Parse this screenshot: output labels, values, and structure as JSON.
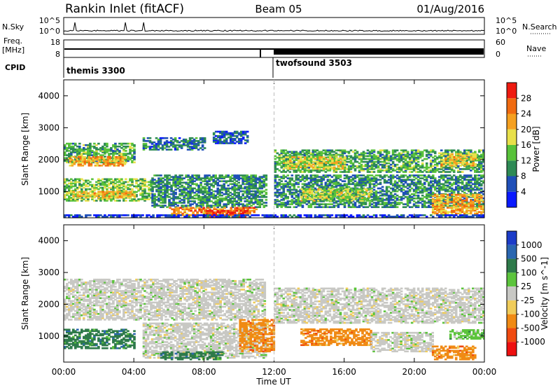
{
  "header": {
    "station": "Rankin Inlet (fitACF)",
    "beam": "Beam 05",
    "date": "01/Aug/2016"
  },
  "noise_panel": {
    "left_label": "N.Sky",
    "right_label": "N.Search",
    "left_ticks": [
      "10^5",
      "10^0"
    ],
    "right_ticks": [
      "10^5",
      "10^0"
    ]
  },
  "freq_panel": {
    "left_label_line1": "Freq.",
    "left_label_line2": "[MHz]",
    "right_label": "Nave",
    "left_ticks": [
      "18",
      "8"
    ],
    "right_ticks": [
      "60",
      "0"
    ]
  },
  "cpid_panel": {
    "label": "CPID",
    "modes": [
      {
        "name": "themis 3300",
        "start_hour": 0
      },
      {
        "name": "twofsound 3503",
        "start_hour": 12
      }
    ]
  },
  "colors": {
    "power": [
      "#0a1aff",
      "#1f4fb8",
      "#2e8a55",
      "#58c23a",
      "#e8e04a",
      "#f5a020",
      "#f06a10",
      "#ee1a10"
    ],
    "velocity": [
      "#1c3cc8",
      "#2a66b0",
      "#2e7a4a",
      "#5cc43c",
      "#c8c8c4",
      "#f0cc5a",
      "#f08a14",
      "#f04a10",
      "#ee1010"
    ],
    "dashed_line": "#bbbbbb"
  },
  "chart_data": [
    {
      "type": "heatmap",
      "title": "",
      "xlabel": "Time UT",
      "ylabel": "Slant Range [km]",
      "xlim": [
        0,
        24
      ],
      "ylim": [
        180,
        4500
      ],
      "x_ticks": [
        "00:00",
        "04:00",
        "08:00",
        "12:00",
        "16:00",
        "20:00",
        "00:00"
      ],
      "y_ticks": [
        "1000",
        "2000",
        "3000",
        "4000"
      ],
      "y_tick_values": [
        1000,
        2000,
        3000,
        4000
      ],
      "colorbar_label": "Power [dB]",
      "colorbar_ticks": [
        "4",
        "8",
        "12",
        "16",
        "20",
        "24",
        "28"
      ],
      "colorbar_range": [
        0,
        32
      ],
      "regions": [
        {
          "t0": 0.0,
          "t1": 4.0,
          "r0": 1900,
          "r1": 2500,
          "v": 12
        },
        {
          "t0": 0.3,
          "t1": 3.5,
          "r0": 1800,
          "r1": 2100,
          "v": 22
        },
        {
          "t0": 0.0,
          "t1": 5.0,
          "r0": 700,
          "r1": 1400,
          "v": 14
        },
        {
          "t0": 0.5,
          "t1": 4.0,
          "r0": 800,
          "r1": 1000,
          "v": 20
        },
        {
          "t0": 5.0,
          "t1": 11.5,
          "r0": 500,
          "r1": 1500,
          "v": 10
        },
        {
          "t0": 6.0,
          "t1": 11.0,
          "r0": 250,
          "r1": 500,
          "v": 24
        },
        {
          "t0": 8.0,
          "t1": 10.5,
          "r0": 200,
          "r1": 400,
          "v": 30
        },
        {
          "t0": 8.5,
          "t1": 10.5,
          "r0": 2500,
          "r1": 2900,
          "v": 6
        },
        {
          "t0": 4.5,
          "t1": 8.0,
          "r0": 2300,
          "r1": 2700,
          "v": 8
        },
        {
          "t0": 12.0,
          "t1": 24.0,
          "r0": 1600,
          "r1": 2300,
          "v": 12
        },
        {
          "t0": 12.5,
          "t1": 16.0,
          "r0": 1700,
          "r1": 2100,
          "v": 18
        },
        {
          "t0": 12.0,
          "t1": 24.0,
          "r0": 500,
          "r1": 1500,
          "v": 10
        },
        {
          "t0": 13.5,
          "t1": 17.5,
          "r0": 700,
          "r1": 1100,
          "v": 16
        },
        {
          "t0": 21.0,
          "t1": 24.0,
          "r0": 300,
          "r1": 900,
          "v": 22
        },
        {
          "t0": 21.5,
          "t1": 23.5,
          "r0": 1800,
          "r1": 2200,
          "v": 20
        },
        {
          "t0": 0.0,
          "t1": 24.0,
          "r0": 200,
          "r1": 260,
          "v": 4
        }
      ]
    },
    {
      "type": "heatmap",
      "title": "",
      "xlabel": "Time UT",
      "ylabel": "Slant Range [km]",
      "xlim": [
        0,
        24
      ],
      "ylim": [
        180,
        4500
      ],
      "x_ticks": [
        "00:00",
        "04:00",
        "08:00",
        "12:00",
        "16:00",
        "20:00",
        "00:00"
      ],
      "y_ticks": [
        "1000",
        "2000",
        "3000",
        "4000"
      ],
      "y_tick_values": [
        1000,
        2000,
        3000,
        4000
      ],
      "colorbar_label": "Velocity [m s^-1]",
      "colorbar_ticks": [
        "1000",
        "500",
        "100",
        "25",
        "-25",
        "-100",
        "-500",
        "-1000"
      ],
      "regions": [
        {
          "t0": 0.0,
          "t1": 11.5,
          "r0": 1500,
          "r1": 2800,
          "v": "zero"
        },
        {
          "t0": 0.0,
          "t1": 4.0,
          "r0": 600,
          "r1": 1200,
          "v": "pos_med"
        },
        {
          "t0": 4.5,
          "t1": 11.5,
          "r0": 300,
          "r1": 1400,
          "v": "zero"
        },
        {
          "t0": 5.5,
          "t1": 9.0,
          "r0": 250,
          "r1": 500,
          "v": "pos_med"
        },
        {
          "t0": 10.0,
          "t1": 12.0,
          "r0": 500,
          "r1": 1500,
          "v": "neg_med"
        },
        {
          "t0": 12.0,
          "t1": 24.0,
          "r0": 1400,
          "r1": 2500,
          "v": "zero"
        },
        {
          "t0": 13.5,
          "t1": 17.5,
          "r0": 700,
          "r1": 1200,
          "v": "neg_med"
        },
        {
          "t0": 17.5,
          "t1": 21.0,
          "r0": 500,
          "r1": 1100,
          "v": "zero"
        },
        {
          "t0": 21.0,
          "t1": 23.5,
          "r0": 250,
          "r1": 700,
          "v": "neg_med"
        },
        {
          "t0": 22.0,
          "t1": 24.0,
          "r0": 900,
          "r1": 1200,
          "v": "pos_low"
        }
      ]
    }
  ]
}
